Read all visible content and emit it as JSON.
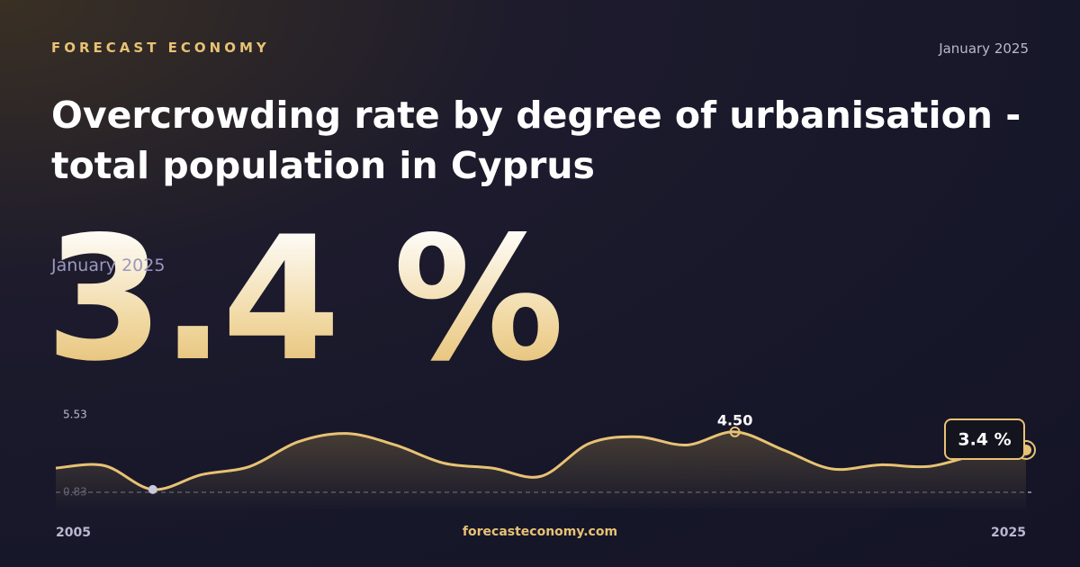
{
  "header": {
    "brand": "FORECAST ECONOMY",
    "date": "January 2025",
    "headline_date": "January 2025",
    "headline_value": "3.4 %"
  },
  "footer": {
    "site": "forecasteconomy.com"
  },
  "chart_data": {
    "type": "line",
    "title": "Overcrowding rate by degree of urbanisation - total population in Cyprus",
    "x": [
      2005,
      2006,
      2007,
      2008,
      2009,
      2010,
      2011,
      2012,
      2013,
      2014,
      2015,
      2016,
      2017,
      2018,
      2019,
      2020,
      2021,
      2022,
      2023,
      2024,
      2025
    ],
    "xticks": [
      2005,
      2025
    ],
    "xlim": [
      2005,
      2025
    ],
    "series": [
      {
        "color": "#e8c274",
        "values": [
          2.3,
          2.45,
          1.0,
          1.9,
          2.4,
          3.9,
          4.4,
          3.7,
          2.6,
          2.3,
          1.8,
          3.8,
          4.2,
          3.7,
          4.5,
          3.4,
          2.25,
          2.5,
          2.4,
          3.1,
          3.4
        ],
        "value_labels": [
          null,
          null,
          null,
          null,
          null,
          null,
          null,
          null,
          null,
          null,
          null,
          null,
          null,
          null,
          "4.50",
          null,
          null,
          null,
          null,
          null,
          "3.4 %"
        ]
      }
    ],
    "ylim": [
      0.83,
      5.53
    ],
    "yticks": [
      0.83,
      5.53
    ],
    "grid": true
  }
}
